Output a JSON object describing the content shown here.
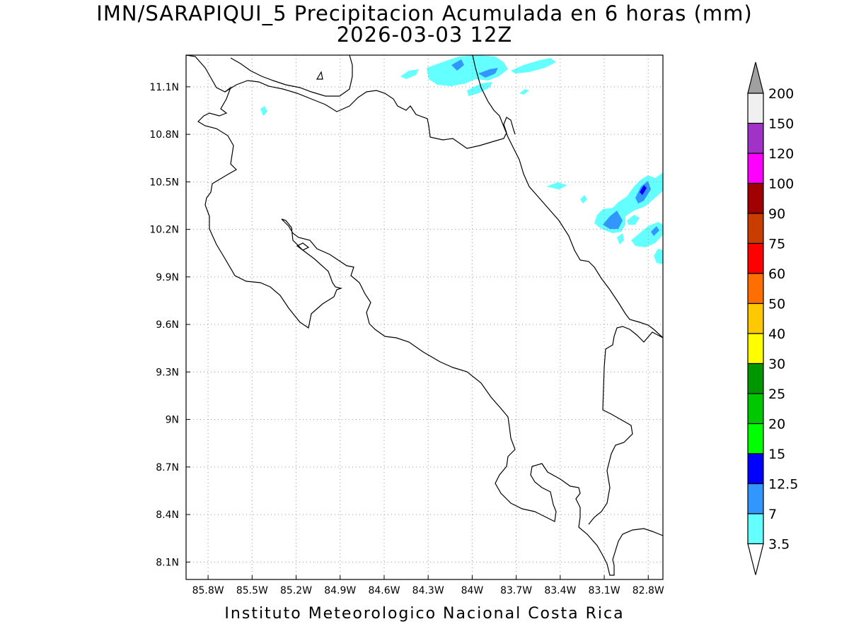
{
  "title": {
    "line1": "IMN/SARAPIQUI_5 Precipitacion Acumulada en 6 horas (mm)",
    "line2": "2026-03-03 12Z"
  },
  "footer": "Instituto Meteorologico Nacional Costa Rica",
  "map": {
    "lon_range": [
      -85.95,
      -82.7
    ],
    "lat_range": [
      7.99,
      11.3
    ],
    "lon_ticks": [
      {
        "v": -85.8,
        "label": "85.8W"
      },
      {
        "v": -85.5,
        "label": "85.5W"
      },
      {
        "v": -85.2,
        "label": "85.2W"
      },
      {
        "v": -84.9,
        "label": "84.9W"
      },
      {
        "v": -84.6,
        "label": "84.6W"
      },
      {
        "v": -84.3,
        "label": "84.3W"
      },
      {
        "v": -84.0,
        "label": "84W"
      },
      {
        "v": -83.7,
        "label": "83.7W"
      },
      {
        "v": -83.4,
        "label": "83.4W"
      },
      {
        "v": -83.1,
        "label": "83.1W"
      },
      {
        "v": -82.8,
        "label": "82.8W"
      }
    ],
    "lat_ticks": [
      {
        "v": 11.1,
        "label": "11.1N"
      },
      {
        "v": 10.8,
        "label": "10.8N"
      },
      {
        "v": 10.5,
        "label": "10.5N"
      },
      {
        "v": 10.2,
        "label": "10.2N"
      },
      {
        "v": 9.9,
        "label": "9.9N"
      },
      {
        "v": 9.6,
        "label": "9.6N"
      },
      {
        "v": 9.3,
        "label": "9.3N"
      },
      {
        "v": 9.0,
        "label": "9N"
      },
      {
        "v": 8.7,
        "label": "8.7N"
      },
      {
        "v": 8.4,
        "label": "8.4N"
      },
      {
        "v": 8.1,
        "label": "8.1N"
      }
    ],
    "grid": "dotted"
  },
  "colorbar": {
    "label_values": [
      "200",
      "150",
      "120",
      "100",
      "90",
      "75",
      "60",
      "50",
      "40",
      "30",
      "25",
      "20",
      "15",
      "12.5",
      "7",
      "3.5"
    ],
    "top_arrow_color": "#a0a0a0",
    "bottom_arrow_color": "#ffffff",
    "bin_colors_top_to_bottom": [
      "#f0f0f0",
      "#a032c8",
      "#ff00ff",
      "#a00000",
      "#c83c00",
      "#ff0000",
      "#ff6e00",
      "#ffc800",
      "#ffff00",
      "#009600",
      "#00c800",
      "#00ff00",
      "#0000ff",
      "#3296ff",
      "#64ffff"
    ]
  },
  "precip_colors": {
    "light": "#64ffff",
    "moderate": "#3296ff",
    "heavy": "#0000ff"
  }
}
